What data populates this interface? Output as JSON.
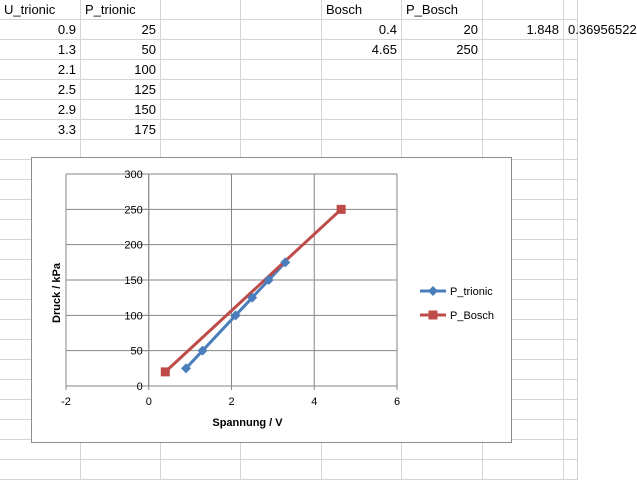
{
  "sheet": {
    "row1": [
      "U_trionic",
      "P_trionic",
      "",
      "",
      "Bosch",
      "P_Bosch",
      "",
      ""
    ],
    "rows": [
      [
        "0.9",
        "25",
        "",
        "",
        "0.4",
        "20",
        "1.848",
        "0.36956522"
      ],
      [
        "1.3",
        "50",
        "",
        "",
        "4.65",
        "250",
        "",
        ""
      ],
      [
        "2.1",
        "100",
        "",
        "",
        "",
        "",
        "",
        ""
      ],
      [
        "2.5",
        "125",
        "",
        "",
        "",
        "",
        "",
        ""
      ],
      [
        "2.9",
        "150",
        "",
        "",
        "",
        "",
        "",
        ""
      ],
      [
        "3.3",
        "175",
        "",
        "",
        "",
        "",
        "",
        ""
      ],
      [
        "",
        "",
        "",
        "",
        "",
        "",
        "",
        ""
      ]
    ]
  },
  "chart_data": {
    "type": "scatter",
    "title": "",
    "xlabel": "Spannung  / V",
    "ylabel": "Druck / kPa",
    "xlim": [
      -2,
      6
    ],
    "ylim": [
      0,
      300
    ],
    "xticks": [
      "-2",
      "0",
      "2",
      "4",
      "6"
    ],
    "yticks": [
      "0",
      "50",
      "100",
      "150",
      "200",
      "250",
      "300"
    ],
    "grid": true,
    "legend_position": "right",
    "series": [
      {
        "name": "P_trionic",
        "color": "#4a7ebb",
        "marker": "diamond",
        "x": [
          0.9,
          1.3,
          2.1,
          2.5,
          2.9,
          3.3
        ],
        "y": [
          25,
          50,
          100,
          125,
          150,
          175
        ]
      },
      {
        "name": "P_Bosch",
        "color": "#be4b48",
        "marker": "square",
        "x": [
          0.4,
          4.65
        ],
        "y": [
          20,
          250
        ]
      }
    ]
  }
}
